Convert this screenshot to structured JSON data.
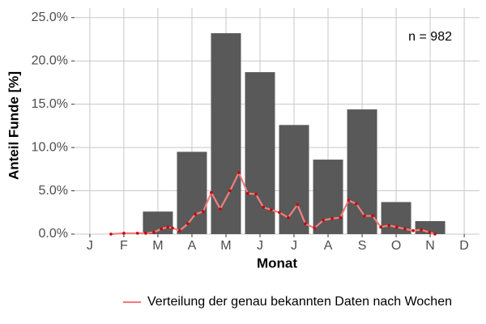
{
  "chart_data": {
    "type": "bar",
    "categories": [
      "J",
      "F",
      "M",
      "A",
      "M",
      "J",
      "J",
      "A",
      "S",
      "O",
      "N",
      "D"
    ],
    "values": [
      0,
      0,
      2.6,
      9.5,
      23.2,
      18.7,
      12.6,
      8.6,
      14.4,
      3.7,
      1.5,
      0
    ],
    "color": "#595959",
    "xlabel": "Monat",
    "ylabel": "Anteil Funde [%]",
    "ylim": [
      0,
      26.1
    ],
    "yticks": [
      {
        "value": 0,
        "label": "0.0%"
      },
      {
        "value": 5,
        "label": "5.0%"
      },
      {
        "value": 10,
        "label": "10.0%"
      },
      {
        "value": 15,
        "label": "15.0%"
      },
      {
        "value": 20,
        "label": "20.0%"
      },
      {
        "value": 25,
        "label": "25.0%"
      }
    ],
    "xlim": [
      0.55,
      12.45
    ],
    "grid": true,
    "annotation": "n = 982",
    "legend": "bottom",
    "line": {
      "name": "Verteilung der genau bekannten Daten nach Wochen",
      "color": "#f08080",
      "marker_color": "#cc0000",
      "x": [
        1.62,
        2.0,
        2.4,
        2.64,
        2.88,
        3.1,
        3.29,
        3.43,
        3.64,
        3.88,
        4.1,
        4.33,
        4.57,
        4.83,
        5.12,
        5.38,
        5.64,
        5.88,
        6.1,
        6.33,
        6.57,
        6.83,
        7.1,
        7.33,
        7.6,
        7.86,
        8.12,
        8.36,
        8.6,
        8.83,
        9.07,
        9.31,
        9.55,
        9.79,
        10.02,
        10.26,
        10.5,
        10.74,
        10.98,
        11.14
      ],
      "values": [
        0,
        0.1,
        0.1,
        0.1,
        0.2,
        0.6,
        0.8,
        0.7,
        0.4,
        1.2,
        2.3,
        2.6,
        4.8,
        2.9,
        5.0,
        7.1,
        4.7,
        4.6,
        3.1,
        2.8,
        2.5,
        1.9,
        3.4,
        1.2,
        0.7,
        1.6,
        1.8,
        1.9,
        3.9,
        3.5,
        2.1,
        2.1,
        0.8,
        1.0,
        0.8,
        0.6,
        0.4,
        0.5,
        0.2,
        0
      ]
    }
  }
}
